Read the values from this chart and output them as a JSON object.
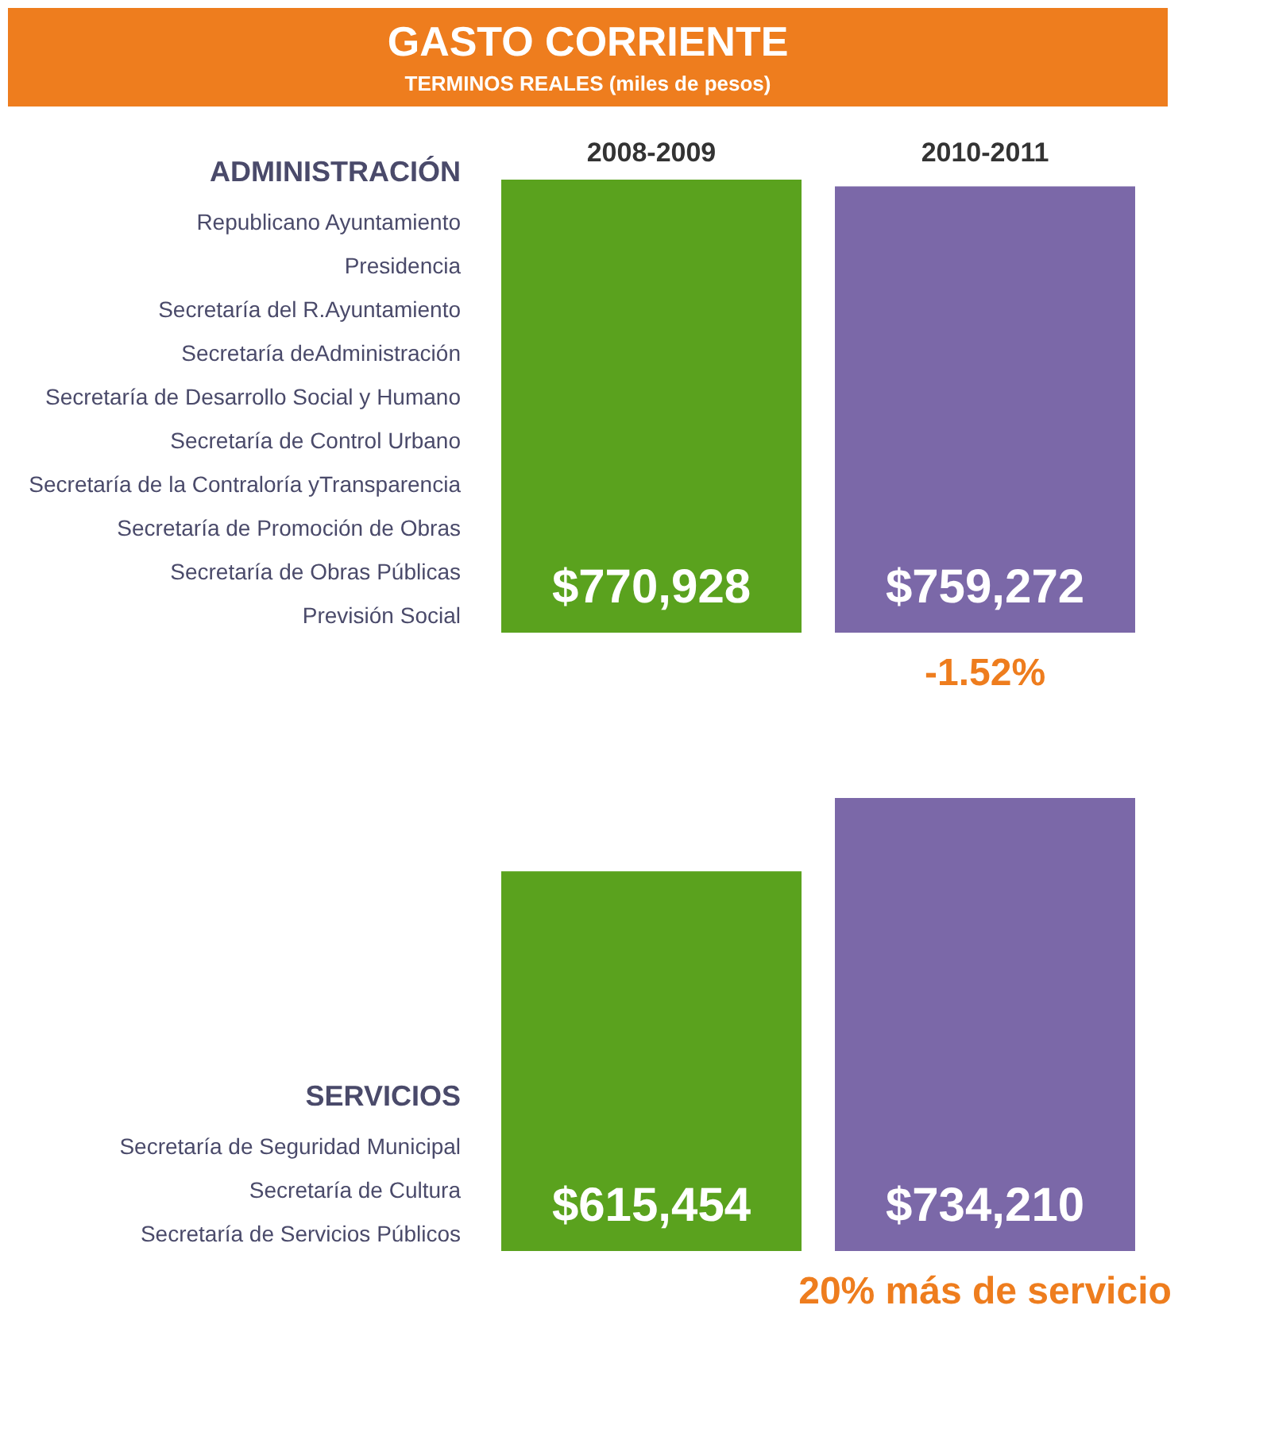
{
  "chart_data": [
    {
      "type": "bar",
      "title": "GASTO CORRIENTE",
      "subtitle": "TERMINOS REALES (miles de pesos)",
      "ylabel": "ADMINISTRACIÓN",
      "tick_labels": "x",
      "categories": [
        "2008-2009",
        "2010-2011"
      ],
      "values": [
        770928,
        759272
      ],
      "colors": [
        "#5aa21e",
        "#7b68a8"
      ],
      "value_labels": [
        "$770,928",
        "$759,272"
      ],
      "annotations": [
        "Republicano Ayuntamiento",
        "Presidencia",
        "Secretaría del R.Ayuntamiento",
        "Secretaría deAdministración",
        "Secretaría de Desarrollo Social y Humano",
        "Secretaría de Control Urbano",
        "Secretaría de la Contraloría yTransparencia",
        "Secretaría de Promoción de Obras",
        "Secretaría de Obras Públicas",
        "Previsión Social",
        "-1.52%"
      ]
    },
    {
      "type": "bar",
      "ylabel": "SERVICIOS",
      "categories": [
        null,
        null
      ],
      "values": [
        615454,
        734210
      ],
      "colors": [
        "#5aa21e",
        "#7b68a8"
      ],
      "value_labels": [
        "$615,454",
        "$734,210"
      ],
      "annotations": [
        "Secretaría de Seguridad Municipal",
        "Secretaría de Cultura",
        "Secretaría de Servicios Públicos",
        "20% más de servicio"
      ]
    }
  ]
}
